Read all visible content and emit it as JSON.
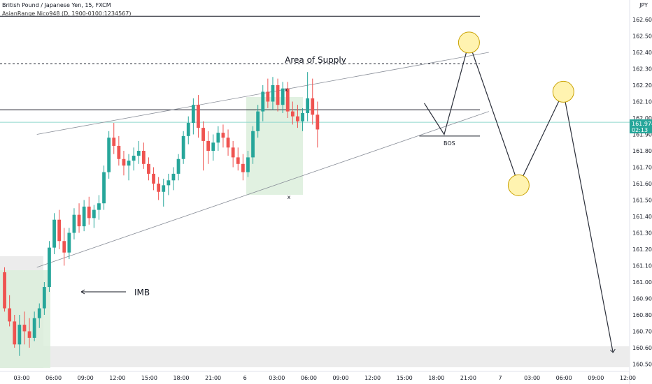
{
  "header": {
    "symbol_line": "British Pound / Japanese Yen, 15, FXCM",
    "indicator_line": "AsianRange Nico948 (D, 1900-0100:1234567)"
  },
  "currency_badge": "JPY",
  "price_tag": {
    "value": "161.974",
    "countdown": "02:13"
  },
  "colors": {
    "up": "#26a69a",
    "down": "#ef5350",
    "zone_green": "#e3f1e3",
    "zone_grey": "#ececec",
    "circle_fill": "#fff3b0",
    "circle_stroke": "#c9a100",
    "price_line": "#8fd6cc"
  },
  "chart_data": {
    "type": "candlestick",
    "y_axis": {
      "range": [
        160.48,
        162.66
      ],
      "ticks": [
        "162.600",
        "162.500",
        "162.400",
        "162.300",
        "162.200",
        "162.100",
        "162.000",
        "161.900",
        "161.800",
        "161.700",
        "161.600",
        "161.500",
        "161.400",
        "161.300",
        "161.200",
        "161.100",
        "161.000",
        "160.900",
        "160.800",
        "160.700",
        "160.600",
        "160.500"
      ]
    },
    "x_axis": {
      "ticks": [
        "03:00",
        "06:00",
        "09:00",
        "12:00",
        "15:00",
        "18:00",
        "21:00",
        "6",
        "03:00",
        "06:00",
        "09:00",
        "12:00",
        "15:00",
        "18:00",
        "21:00",
        "7",
        "03:00",
        "06:00",
        "09:00",
        "12:00"
      ]
    },
    "annotations": {
      "supply_label": "Area of Supply",
      "imb_label": "IMB",
      "bos_label": "BOS",
      "x_mark_top": "x",
      "x_mark_bottom": "x"
    },
    "levels": {
      "top_line": 162.62,
      "supply_dashed": 162.33,
      "resistance": 162.05,
      "bos": 161.89,
      "current_price": 161.974
    },
    "wedge": {
      "upper": {
        "start": [
          7,
          161.9
        ],
        "end": [
          98,
          162.4
        ]
      },
      "lower": {
        "start": [
          7,
          161.09
        ],
        "end": [
          98,
          162.04
        ]
      }
    },
    "projection_path": [
      [
        85,
        162.09
      ],
      [
        89,
        161.9
      ],
      [
        94,
        162.46
      ],
      [
        104,
        161.59
      ],
      [
        113,
        162.16
      ],
      [
        123,
        160.57
      ]
    ],
    "projection_circles": [
      [
        94,
        162.46
      ],
      [
        104,
        161.59
      ],
      [
        113,
        162.16
      ]
    ],
    "last_candle_index": 82,
    "candles_ohlc": [
      [
        161.06,
        161.09,
        160.82,
        160.84
      ],
      [
        160.84,
        160.92,
        160.73,
        160.76
      ],
      [
        160.76,
        160.8,
        160.6,
        160.62
      ],
      [
        160.62,
        160.8,
        160.55,
        160.74
      ],
      [
        160.74,
        160.82,
        160.62,
        160.7
      ],
      [
        160.7,
        160.78,
        160.6,
        160.66
      ],
      [
        160.66,
        160.82,
        160.64,
        160.78
      ],
      [
        160.78,
        160.87,
        160.72,
        160.84
      ],
      [
        160.84,
        161,
        160.8,
        160.97
      ],
      [
        160.97,
        161.25,
        160.94,
        161.21
      ],
      [
        161.21,
        161.42,
        161.17,
        161.38
      ],
      [
        161.38,
        161.44,
        161.2,
        161.25
      ],
      [
        161.25,
        161.33,
        161.1,
        161.18
      ],
      [
        161.18,
        161.33,
        161.14,
        161.3
      ],
      [
        161.3,
        161.45,
        161.26,
        161.41
      ],
      [
        161.41,
        161.48,
        161.3,
        161.34
      ],
      [
        161.34,
        161.5,
        161.31,
        161.46
      ],
      [
        161.46,
        161.52,
        161.35,
        161.39
      ],
      [
        161.39,
        161.47,
        161.33,
        161.44
      ],
      [
        161.44,
        161.53,
        161.38,
        161.48
      ],
      [
        161.48,
        161.71,
        161.44,
        161.67
      ],
      [
        161.67,
        161.92,
        161.63,
        161.88
      ],
      [
        161.88,
        161.97,
        161.78,
        161.83
      ],
      [
        161.83,
        161.89,
        161.71,
        161.75
      ],
      [
        161.75,
        161.8,
        161.65,
        161.71
      ],
      [
        161.71,
        161.78,
        161.62,
        161.74
      ],
      [
        161.74,
        161.82,
        161.68,
        161.77
      ],
      [
        161.77,
        161.86,
        161.72,
        161.8
      ],
      [
        161.8,
        161.85,
        161.69,
        161.72
      ],
      [
        161.72,
        161.76,
        161.62,
        161.66
      ],
      [
        161.66,
        161.7,
        161.56,
        161.6
      ],
      [
        161.6,
        161.64,
        161.5,
        161.55
      ],
      [
        161.55,
        161.63,
        161.46,
        161.59
      ],
      [
        161.59,
        161.66,
        161.53,
        161.62
      ],
      [
        161.62,
        161.7,
        161.56,
        161.66
      ],
      [
        161.66,
        161.78,
        161.62,
        161.75
      ],
      [
        161.75,
        161.92,
        161.72,
        161.89
      ],
      [
        161.89,
        162.01,
        161.84,
        161.97
      ],
      [
        161.97,
        162.12,
        161.9,
        162.08
      ],
      [
        162.08,
        162.14,
        161.88,
        161.94
      ],
      [
        161.94,
        161.98,
        161.68,
        161.86
      ],
      [
        161.86,
        161.92,
        161.72,
        161.8
      ],
      [
        161.8,
        161.9,
        161.74,
        161.85
      ],
      [
        161.85,
        161.95,
        161.8,
        161.91
      ],
      [
        161.91,
        161.96,
        161.82,
        161.88
      ],
      [
        161.88,
        161.93,
        161.77,
        161.82
      ],
      [
        161.82,
        161.86,
        161.7,
        161.76
      ],
      [
        161.76,
        161.82,
        161.68,
        161.72
      ],
      [
        161.72,
        161.78,
        161.62,
        161.67
      ],
      [
        161.67,
        161.8,
        161.64,
        161.76
      ],
      [
        161.76,
        161.95,
        161.72,
        161.92
      ],
      [
        161.92,
        162.08,
        161.88,
        162.04
      ],
      [
        162.04,
        162.2,
        161.98,
        162.16
      ],
      [
        162.16,
        162.24,
        162.06,
        162.1
      ],
      [
        162.1,
        162.25,
        162.05,
        162.2
      ],
      [
        162.2,
        162.24,
        162.04,
        162.08
      ],
      [
        162.08,
        162.22,
        162.03,
        162.18
      ],
      [
        162.18,
        162.22,
        162,
        162.04
      ],
      [
        162.04,
        162.1,
        161.96,
        162.01
      ],
      [
        162.01,
        162.08,
        161.94,
        161.98
      ],
      [
        161.98,
        162.06,
        161.92,
        162.03
      ],
      [
        162.03,
        162.28,
        161.98,
        162.12
      ],
      [
        162.12,
        162.24,
        161.96,
        162.02
      ],
      [
        162.02,
        162.1,
        161.82,
        161.93
      ]
    ]
  }
}
